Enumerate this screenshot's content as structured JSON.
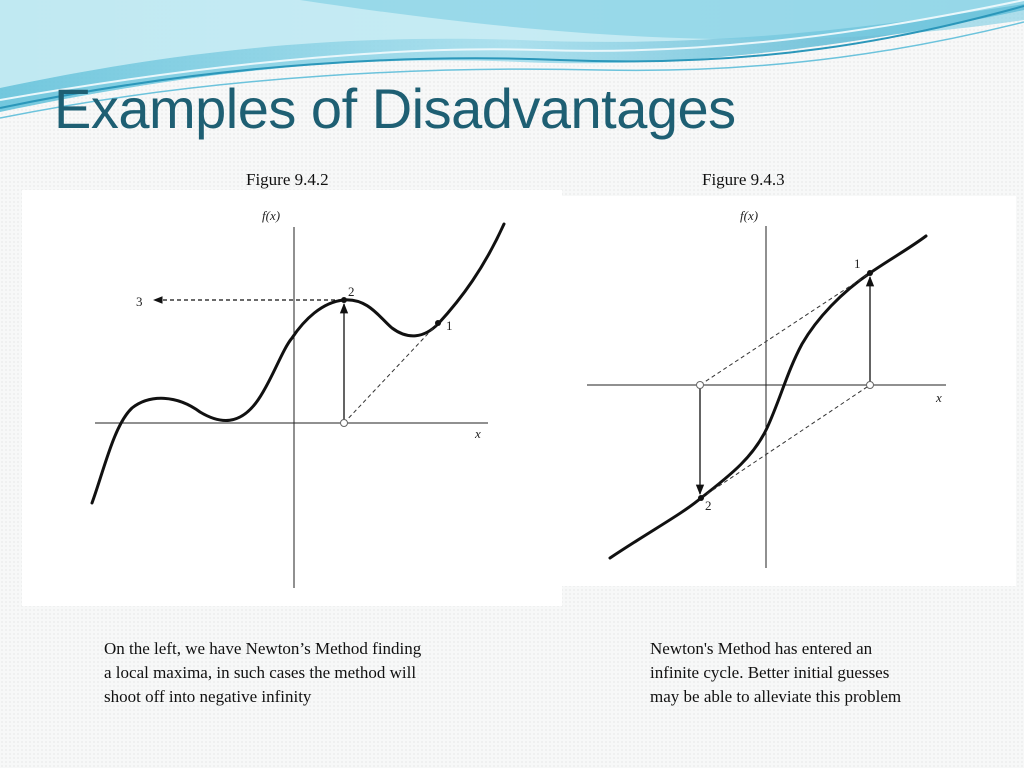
{
  "slide": {
    "title": "Examples of Disadvantages",
    "colors": {
      "title": "#1e5f73",
      "wave_dark": "#3fa9c9",
      "wave_light": "#bfe6f0"
    }
  },
  "figures": [
    {
      "caption": "Figure 9.4.2",
      "axis_y_label": "f(x)",
      "axis_x_label": "x",
      "point_labels": [
        "1",
        "2",
        "3"
      ],
      "description_lines": [
        "On the left, we have Newton’s Method finding",
        "a local maxima, in such cases the method will",
        "shoot off into negative infinity"
      ]
    },
    {
      "caption": "Figure 9.4.3",
      "axis_y_label": "f(x)",
      "axis_x_label": "x",
      "point_labels": [
        "1",
        "2"
      ],
      "description_lines": [
        "Newton's Method has entered an",
        "infinite cycle. Better initial guesses",
        "may be able to alleviate this problem"
      ]
    }
  ]
}
